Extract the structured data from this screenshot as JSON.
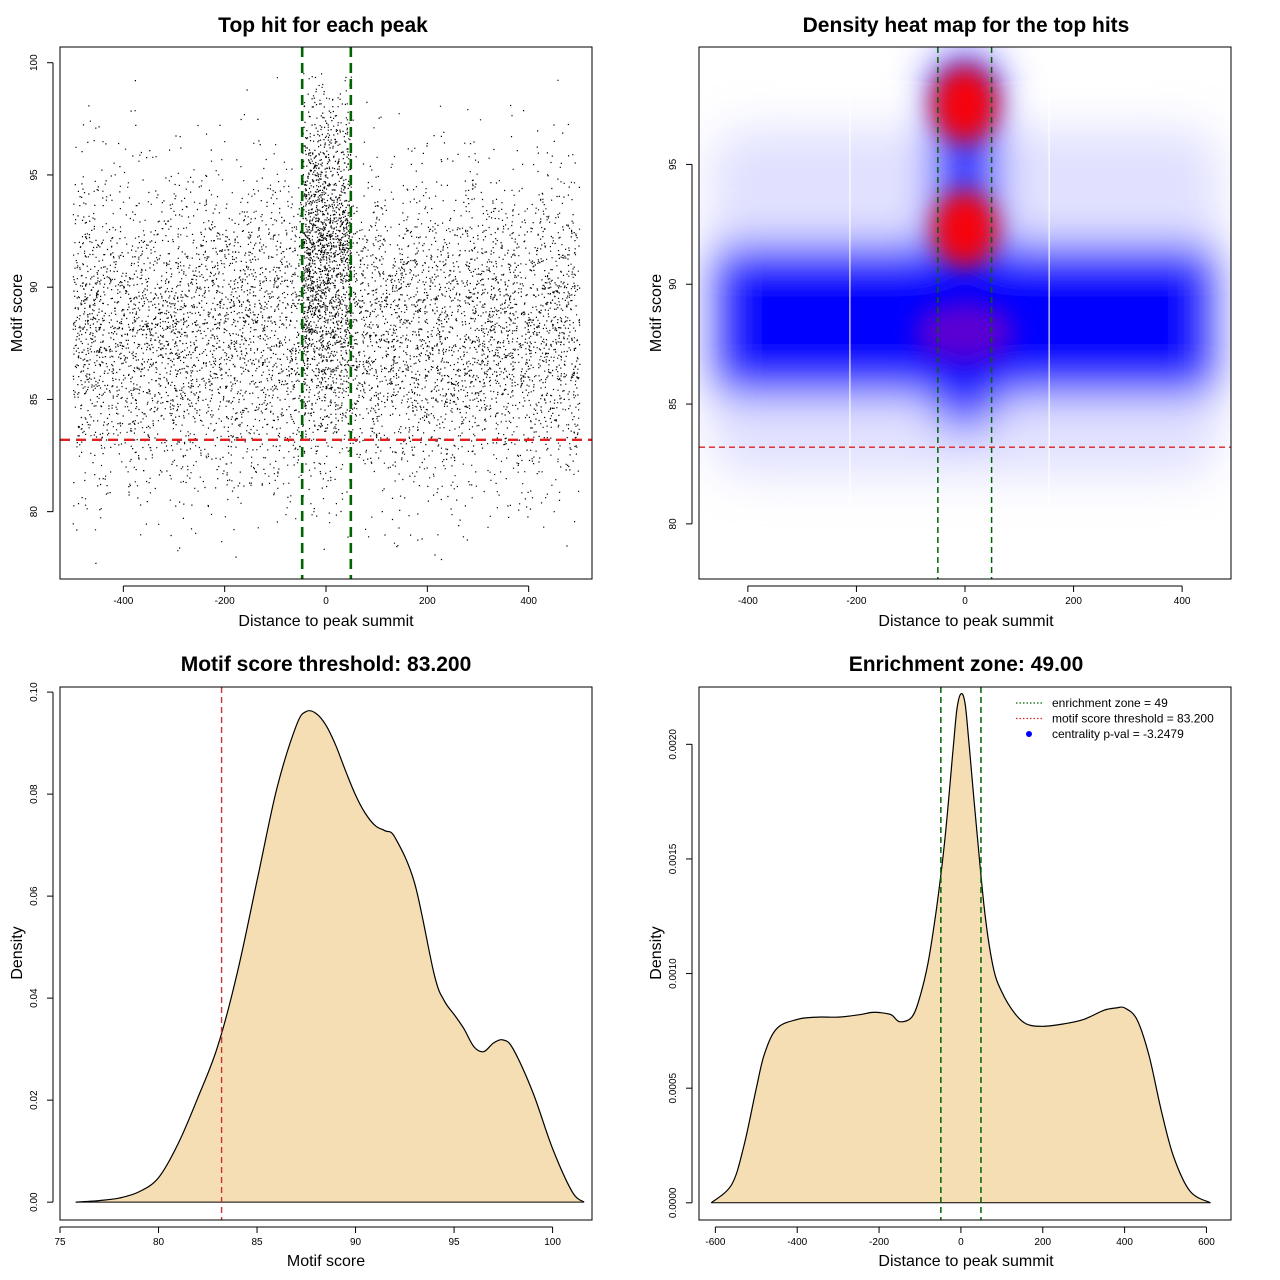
{
  "chart_data": [
    {
      "type": "scatter",
      "title": "Top hit for each peak",
      "xlabel": "Distance to peak summit",
      "ylabel": "Motif score",
      "xlim": [
        -525,
        525
      ],
      "ylim": [
        77,
        100.7
      ],
      "xticks": [
        -400,
        -200,
        0,
        200,
        400
      ],
      "yticks": [
        80,
        85,
        90,
        95,
        100
      ],
      "reference_lines": {
        "vertical": [
          -47,
          49
        ],
        "vertical_color": "#006400",
        "horizontal": 83.2,
        "horizontal_color": "#dd2222"
      },
      "points_summary": {
        "x_range": [
          -500,
          500
        ],
        "y_range": [
          77.6,
          99.8
        ],
        "dense_band_y": [
          83,
          93
        ],
        "central_enrichment_x": [
          -47,
          49
        ],
        "point_color": "#000000"
      }
    },
    {
      "type": "heatmap",
      "title": "Density heat map for the top hits",
      "xlabel": "Distance to peak summit",
      "ylabel": "Motif score",
      "xlim": [
        -490,
        490
      ],
      "ylim": [
        77.7,
        99.9
      ],
      "xticks": [
        -400,
        -200,
        0,
        200,
        400
      ],
      "yticks": [
        80,
        85,
        90,
        95
      ],
      "reference_lines": {
        "vertical": [
          -50,
          49
        ],
        "vertical_color": "#006400",
        "horizontal": 83.2,
        "horizontal_color": "#dd2222",
        "white_vertical": [
          -212,
          155
        ]
      },
      "colors": {
        "low": "#ffffff",
        "mid": "#0000ff",
        "high": "#ff0000"
      },
      "hotspots": [
        {
          "x": 0,
          "y": 97.5,
          "level": "high"
        },
        {
          "x": 0,
          "y": 92.3,
          "level": "high"
        },
        {
          "x": 0,
          "y": 88,
          "level": "mid"
        }
      ]
    },
    {
      "type": "area",
      "title": "Motif score threshold: 83.200",
      "xlabel": "Motif score",
      "ylabel": "Density",
      "xlim": [
        75,
        102
      ],
      "ylim": [
        -0.0035,
        0.101
      ],
      "xticks": [
        75,
        80,
        85,
        90,
        95,
        100
      ],
      "yticks": [
        0.0,
        0.02,
        0.04,
        0.06,
        0.08,
        0.1
      ],
      "ytick_labels": [
        "0.00",
        "0.02",
        "0.04",
        "0.06",
        "0.08",
        "0.10"
      ],
      "fill_color": "#f5deb3",
      "threshold_line": 83.2,
      "threshold_color": "#c83232",
      "x": [
        75.8,
        77,
        78,
        79,
        80,
        81,
        82,
        83,
        84,
        85,
        86,
        87,
        87.5,
        88,
        88.5,
        89,
        89.5,
        90,
        90.5,
        91,
        91.5,
        92,
        93,
        94,
        94.5,
        95,
        95.5,
        96,
        96.5,
        97,
        97.5,
        98,
        99,
        100,
        101,
        101.6
      ],
      "values": [
        0.0,
        0.0003,
        0.0008,
        0.002,
        0.0048,
        0.0115,
        0.0205,
        0.0305,
        0.045,
        0.063,
        0.081,
        0.0935,
        0.0962,
        0.0958,
        0.0935,
        0.0895,
        0.0845,
        0.0798,
        0.0762,
        0.0738,
        0.0728,
        0.0715,
        0.0625,
        0.0445,
        0.0395,
        0.0368,
        0.034,
        0.0305,
        0.0295,
        0.0312,
        0.0318,
        0.03,
        0.0215,
        0.0105,
        0.002,
        0.0
      ]
    },
    {
      "type": "area",
      "title": "Enrichment zone: 49.00",
      "xlabel": "Distance to peak summit",
      "ylabel": "Density",
      "xlim": [
        -640,
        660
      ],
      "ylim": [
        -7.5e-05,
        0.00225
      ],
      "xticks": [
        -600,
        -400,
        -200,
        0,
        200,
        400,
        600
      ],
      "yticks": [
        0.0,
        0.0005,
        0.001,
        0.0015,
        0.002
      ],
      "ytick_labels": [
        "0.0000",
        "0.0005",
        "0.0010",
        "0.0015",
        "0.0020"
      ],
      "fill_color": "#f5deb3",
      "enrichment_lines": [
        -49,
        49
      ],
      "enrichment_color": "#006400",
      "x": [
        -610,
        -560,
        -530,
        -500,
        -480,
        -450,
        -400,
        -350,
        -300,
        -250,
        -220,
        -200,
        -170,
        -150,
        -120,
        -100,
        -80,
        -60,
        -40,
        -20,
        -10,
        0,
        10,
        20,
        40,
        60,
        80,
        100,
        130,
        160,
        200,
        250,
        300,
        350,
        380,
        400,
        430,
        460,
        490,
        520,
        560,
        610
      ],
      "values": [
        0.0,
        8e-05,
        0.00025,
        0.0005,
        0.00065,
        0.00076,
        0.0008,
        0.00081,
        0.00081,
        0.00082,
        0.00083,
        0.00083,
        0.00082,
        0.00079,
        0.00081,
        0.0009,
        0.00105,
        0.00128,
        0.00157,
        0.00196,
        0.00215,
        0.00222,
        0.00218,
        0.002,
        0.0016,
        0.00124,
        0.00102,
        0.00092,
        0.00083,
        0.00078,
        0.00077,
        0.00078,
        0.0008,
        0.00084,
        0.00085,
        0.00085,
        0.0008,
        0.00064,
        0.0004,
        0.0002,
        5e-05,
        0.0
      ],
      "legend": [
        {
          "label": "enrichment zone = 49",
          "marker": "dotted-line",
          "color": "#006400"
        },
        {
          "label": "motif score threshold = 83.200",
          "marker": "dotted-line",
          "color": "#dd2222"
        },
        {
          "label": "centrality p-val = -3.2479",
          "marker": "dot",
          "color": "#0000ff"
        }
      ],
      "legend_position": "top-right"
    }
  ]
}
